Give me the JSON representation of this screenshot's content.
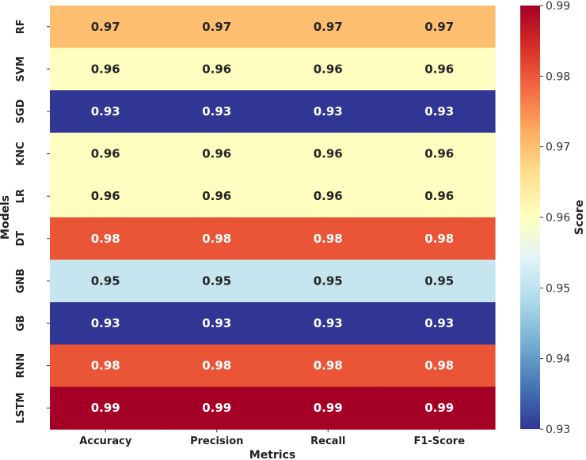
{
  "chart_data": {
    "type": "heatmap",
    "xlabel": "Metrics",
    "ylabel": "Models",
    "columns": [
      "Accuracy",
      "Precision",
      "Recall",
      "F1-Score"
    ],
    "rows": [
      "RF",
      "SVM",
      "SGD",
      "KNC",
      "LR",
      "DT",
      "GNB",
      "GB",
      "RNN",
      "LSTM"
    ],
    "values": [
      [
        0.97,
        0.97,
        0.97,
        0.97
      ],
      [
        0.96,
        0.96,
        0.96,
        0.96
      ],
      [
        0.93,
        0.93,
        0.93,
        0.93
      ],
      [
        0.96,
        0.96,
        0.96,
        0.96
      ],
      [
        0.96,
        0.96,
        0.96,
        0.96
      ],
      [
        0.98,
        0.98,
        0.98,
        0.98
      ],
      [
        0.95,
        0.95,
        0.95,
        0.95
      ],
      [
        0.93,
        0.93,
        0.93,
        0.93
      ],
      [
        0.98,
        0.98,
        0.98,
        0.98
      ],
      [
        0.99,
        0.99,
        0.99,
        0.99
      ]
    ],
    "cell_labels": [
      [
        "0.97",
        "0.97",
        "0.97",
        "0.97"
      ],
      [
        "0.96",
        "0.96",
        "0.96",
        "0.96"
      ],
      [
        "0.93",
        "0.93",
        "0.93",
        "0.93"
      ],
      [
        "0.96",
        "0.96",
        "0.96",
        "0.96"
      ],
      [
        "0.96",
        "0.96",
        "0.96",
        "0.96"
      ],
      [
        "0.98",
        "0.98",
        "0.98",
        "0.98"
      ],
      [
        "0.95",
        "0.95",
        "0.95",
        "0.95"
      ],
      [
        "0.93",
        "0.93",
        "0.93",
        "0.93"
      ],
      [
        "0.98",
        "0.98",
        "0.98",
        "0.98"
      ],
      [
        "0.99",
        "0.99",
        "0.99",
        "0.99"
      ]
    ],
    "colorbar": {
      "label": "Score",
      "range": [
        0.93,
        0.99
      ],
      "ticks": [
        0.93,
        0.94,
        0.95,
        0.96,
        0.97,
        0.98,
        0.99
      ],
      "tick_labels": [
        "0.93",
        "0.94",
        "0.95",
        "0.96",
        "0.97",
        "0.98",
        "0.99"
      ],
      "colormap": "RdYlBu_r"
    },
    "value_colors": {
      "0.93": "#313695",
      "0.95": "#c6e5ef",
      "0.96": "#fefec1",
      "0.97": "#fdbe70",
      "0.98": "#e95536",
      "0.99": "#a50026"
    }
  }
}
